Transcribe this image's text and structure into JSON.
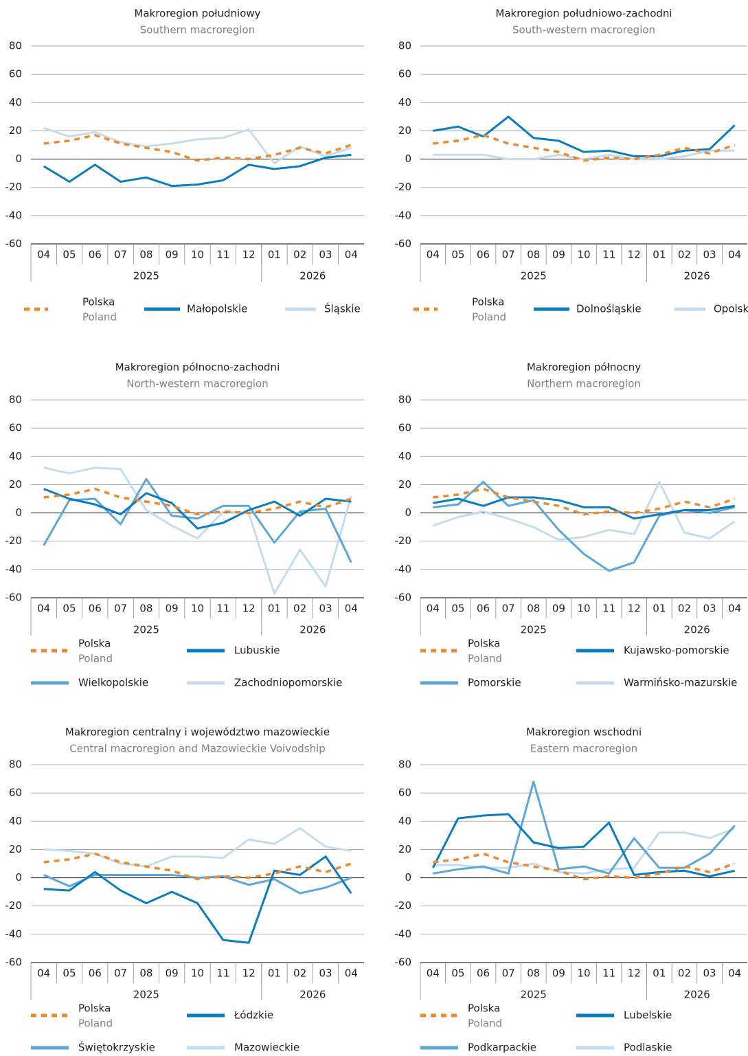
{
  "chart_data": [
    {
      "type": "line",
      "title": "Makroregion południowy",
      "subtitle": "Southern macroregion",
      "categories": [
        "04",
        "05",
        "06",
        "07",
        "08",
        "09",
        "10",
        "11",
        "12",
        "01",
        "02",
        "03",
        "04"
      ],
      "year_groups": [
        {
          "label": "2025",
          "count": 9
        },
        {
          "label": "2026",
          "count": 4
        }
      ],
      "ylim": [
        -60,
        80
      ],
      "yticks": [
        -60,
        -40,
        -20,
        0,
        20,
        40,
        60,
        80
      ],
      "series": [
        {
          "name": "Polska",
          "name_en": "Poland",
          "color": "#f0892c",
          "dash": true,
          "values": [
            11,
            13,
            17,
            11,
            8,
            5,
            -1,
            1,
            0,
            3,
            8,
            4,
            10
          ]
        },
        {
          "name": "Małopolskie",
          "color": "#0a7cc1",
          "values": [
            -5,
            -16,
            -4,
            -16,
            -13,
            -19,
            -18,
            -15,
            -4,
            -7,
            -5,
            1,
            3
          ]
        },
        {
          "name": "Śląskie",
          "color": "#c5dcef",
          "values": [
            22,
            16,
            19,
            12,
            9,
            11,
            14,
            15,
            21,
            -3,
            9,
            2,
            8
          ]
        }
      ]
    },
    {
      "type": "line",
      "title": "Makroregion południowo-zachodni",
      "subtitle": "South-western macroregion",
      "categories": [
        "04",
        "05",
        "06",
        "07",
        "08",
        "09",
        "10",
        "11",
        "12",
        "01",
        "02",
        "03",
        "04"
      ],
      "year_groups": [
        {
          "label": "2025",
          "count": 9
        },
        {
          "label": "2026",
          "count": 4
        }
      ],
      "ylim": [
        -60,
        80
      ],
      "yticks": [
        -60,
        -40,
        -20,
        0,
        20,
        40,
        60,
        80
      ],
      "series": [
        {
          "name": "Polska",
          "name_en": "Poland",
          "color": "#f0892c",
          "dash": true,
          "values": [
            11,
            13,
            17,
            11,
            8,
            5,
            -1,
            1,
            0,
            3,
            8,
            4,
            10
          ]
        },
        {
          "name": "Dolnośląskie",
          "color": "#0a7cc1",
          "values": [
            20,
            23,
            16,
            30,
            15,
            13,
            5,
            6,
            2,
            2,
            6,
            7,
            24
          ]
        },
        {
          "name": "Opolskie",
          "color": "#c5dcef",
          "values": [
            3,
            3,
            3,
            0,
            0,
            3,
            0,
            3,
            0,
            0,
            2,
            6,
            6
          ]
        }
      ]
    },
    {
      "type": "line",
      "title": "Makroregion północno-zachodni",
      "subtitle": "North-western macroregion",
      "categories": [
        "04",
        "05",
        "06",
        "07",
        "08",
        "09",
        "10",
        "11",
        "12",
        "01",
        "02",
        "03",
        "04"
      ],
      "year_groups": [
        {
          "label": "2025",
          "count": 9
        },
        {
          "label": "2026",
          "count": 4
        }
      ],
      "ylim": [
        -60,
        80
      ],
      "yticks": [
        -60,
        -40,
        -20,
        0,
        20,
        40,
        60,
        80
      ],
      "series": [
        {
          "name": "Polska",
          "name_en": "Poland",
          "color": "#f0892c",
          "dash": true,
          "values": [
            11,
            13,
            17,
            11,
            8,
            5,
            -1,
            1,
            0,
            3,
            8,
            4,
            10
          ]
        },
        {
          "name": "Lubuskie",
          "color": "#0a7cc1",
          "values": [
            17,
            10,
            6,
            -1,
            14,
            7,
            -11,
            -7,
            2,
            8,
            -2,
            10,
            8
          ]
        },
        {
          "name": "Wielkopolskie",
          "color": "#5ba7d8",
          "values": [
            -23,
            9,
            10,
            -8,
            24,
            -2,
            -4,
            5,
            5,
            -21,
            1,
            3,
            -35
          ]
        },
        {
          "name": "Zachodniopomorskie",
          "color": "#c5dcef",
          "values": [
            32,
            28,
            32,
            31,
            2,
            -9,
            -18,
            1,
            0,
            -57,
            -26,
            -52,
            12
          ]
        }
      ]
    },
    {
      "type": "line",
      "title": "Makroregion północny",
      "subtitle": "Northern macroregion",
      "categories": [
        "04",
        "05",
        "06",
        "07",
        "08",
        "09",
        "10",
        "11",
        "12",
        "01",
        "02",
        "03",
        "04"
      ],
      "year_groups": [
        {
          "label": "2025",
          "count": 9
        },
        {
          "label": "2026",
          "count": 4
        }
      ],
      "ylim": [
        -60,
        80
      ],
      "yticks": [
        -60,
        -40,
        -20,
        0,
        20,
        40,
        60,
        80
      ],
      "series": [
        {
          "name": "Polska",
          "name_en": "Poland",
          "color": "#f0892c",
          "dash": true,
          "values": [
            11,
            13,
            17,
            11,
            8,
            5,
            -1,
            1,
            0,
            3,
            8,
            4,
            10
          ]
        },
        {
          "name": "Kujawsko-pomorskie",
          "color": "#0a7cc1",
          "values": [
            7,
            10,
            5,
            11,
            11,
            9,
            4,
            4,
            -4,
            -1,
            2,
            2,
            5
          ]
        },
        {
          "name": "Pomorskie",
          "color": "#5ba7d8",
          "values": [
            4,
            6,
            22,
            5,
            9,
            -12,
            -29,
            -41,
            -35,
            -2,
            2,
            0,
            4
          ]
        },
        {
          "name": "Warmińsko-mazurskie",
          "color": "#c5dcef",
          "values": [
            -9,
            -3,
            1,
            -4,
            -10,
            -19,
            -17,
            -12,
            -15,
            22,
            -14,
            -18,
            -6
          ]
        }
      ]
    },
    {
      "type": "line",
      "title": "Makroregion centralny i województwo mazowieckie",
      "subtitle": "Central macroregion and Mazowieckie Voivodship",
      "categories": [
        "04",
        "05",
        "06",
        "07",
        "08",
        "09",
        "10",
        "11",
        "12",
        "01",
        "02",
        "03",
        "04"
      ],
      "year_groups": [
        {
          "label": "2025",
          "count": 9
        },
        {
          "label": "2026",
          "count": 4
        }
      ],
      "ylim": [
        -60,
        80
      ],
      "yticks": [
        -60,
        -40,
        -20,
        0,
        20,
        40,
        60,
        80
      ],
      "series": [
        {
          "name": "Polska",
          "name_en": "Poland",
          "color": "#f0892c",
          "dash": true,
          "values": [
            11,
            13,
            17,
            11,
            8,
            5,
            -1,
            1,
            0,
            3,
            8,
            4,
            10
          ]
        },
        {
          "name": "Łódzkie",
          "color": "#0a7cc1",
          "values": [
            -8,
            -9,
            4,
            -9,
            -18,
            -10,
            -18,
            -44,
            -46,
            5,
            2,
            15,
            -11
          ]
        },
        {
          "name": "Świętokrzyskie",
          "color": "#5ba7d8",
          "values": [
            2,
            -6,
            2,
            2,
            2,
            2,
            0,
            1,
            -5,
            -1,
            -11,
            -7,
            0
          ]
        },
        {
          "name": "Mazowieckie",
          "color": "#c5dcef",
          "values": [
            20,
            19,
            17,
            10,
            8,
            15,
            15,
            14,
            27,
            24,
            35,
            22,
            19
          ]
        }
      ]
    },
    {
      "type": "line",
      "title": "Makroregion wschodni",
      "subtitle": "Eastern macroregion",
      "categories": [
        "04",
        "05",
        "06",
        "07",
        "08",
        "09",
        "10",
        "11",
        "12",
        "01",
        "02",
        "03",
        "04"
      ],
      "year_groups": [
        {
          "label": "2025",
          "count": 9
        },
        {
          "label": "2026",
          "count": 4
        }
      ],
      "ylim": [
        -60,
        80
      ],
      "yticks": [
        -60,
        -40,
        -20,
        0,
        20,
        40,
        60,
        80
      ],
      "series": [
        {
          "name": "Polska",
          "name_en": "Poland",
          "color": "#f0892c",
          "dash": true,
          "values": [
            11,
            13,
            17,
            11,
            8,
            5,
            -1,
            1,
            0,
            3,
            8,
            4,
            10
          ]
        },
        {
          "name": "Lubelskie",
          "color": "#0a7cc1",
          "values": [
            7,
            42,
            44,
            45,
            25,
            21,
            22,
            39,
            2,
            4,
            5,
            1,
            5
          ]
        },
        {
          "name": "Podkarpackie",
          "color": "#5ba7d8",
          "values": [
            3,
            6,
            8,
            3,
            68,
            6,
            8,
            3,
            28,
            7,
            7,
            17,
            37
          ]
        },
        {
          "name": "Podlaskie",
          "color": "#c5dcef",
          "values": [
            9,
            9,
            7,
            7,
            10,
            4,
            3,
            6,
            7,
            32,
            32,
            28,
            35
          ]
        }
      ]
    }
  ]
}
